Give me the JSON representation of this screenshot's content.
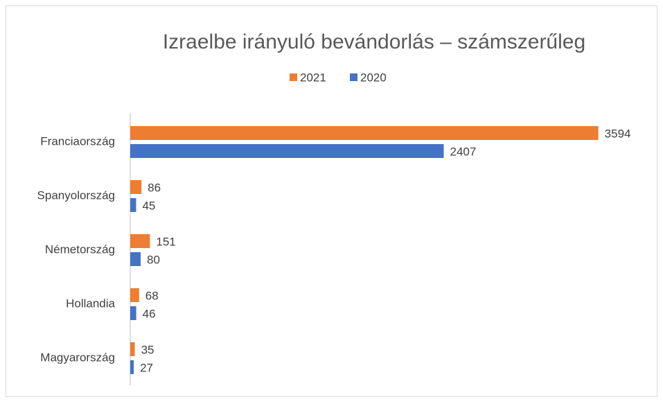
{
  "chart_data": {
    "type": "bar",
    "orientation": "horizontal",
    "title": "Izraelbe irányuló bevándorlás – számszerűleg",
    "categories": [
      "Franciaország",
      "Spanyolország",
      "Németország",
      "Hollandia",
      "Magyarország"
    ],
    "series": [
      {
        "name": "2021",
        "color": "#ed7d31",
        "values": [
          3594,
          86,
          151,
          68,
          35
        ]
      },
      {
        "name": "2020",
        "color": "#4472c4",
        "values": [
          2407,
          45,
          80,
          46,
          27
        ]
      }
    ],
    "xlim": [
      0,
      4000
    ],
    "legend": "top"
  }
}
